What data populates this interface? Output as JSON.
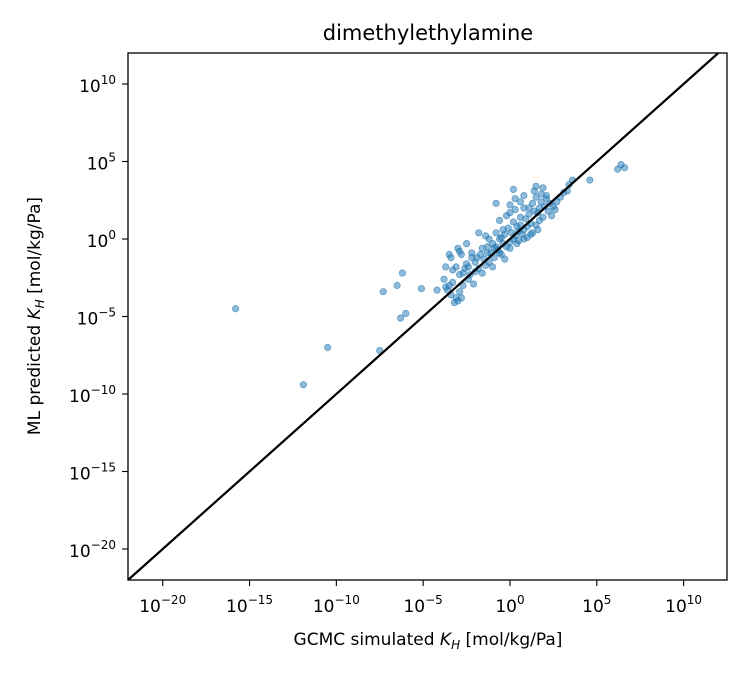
{
  "chart_data": {
    "type": "scatter",
    "title": "dimethylethylamine",
    "xlabel": {
      "prefix": "GCMC simulated ",
      "symbol": "K",
      "sub": "H",
      "suffix": " [mol/kg/Pa]"
    },
    "ylabel": {
      "prefix": "ML predicted ",
      "symbol": "K",
      "sub": "H",
      "suffix": " [mol/kg/Pa]"
    },
    "scale": "log10",
    "xlim_exp": [
      -22,
      12.5
    ],
    "ylim_exp": [
      -22,
      12
    ],
    "xticks": [
      {
        "base": "10",
        "exp": "−20"
      },
      {
        "base": "10",
        "exp": "−15"
      },
      {
        "base": "10",
        "exp": "−10"
      },
      {
        "base": "10",
        "exp": "−5"
      },
      {
        "base": "10",
        "exp": "0"
      },
      {
        "base": "10",
        "exp": "5"
      },
      {
        "base": "10",
        "exp": "10"
      }
    ],
    "yticks": [
      {
        "base": "10",
        "exp": "−20"
      },
      {
        "base": "10",
        "exp": "−15"
      },
      {
        "base": "10",
        "exp": "−10"
      },
      {
        "base": "10",
        "exp": "−5"
      },
      {
        "base": "10",
        "exp": "0"
      },
      {
        "base": "10",
        "exp": "5"
      },
      {
        "base": "10",
        "exp": "10"
      }
    ],
    "identity_line": true,
    "grid": false,
    "point_color": "#1f77b4",
    "line_color": "#000000",
    "points_log10": [
      [
        -15.8,
        -4.5
      ],
      [
        -11.9,
        -9.4
      ],
      [
        -10.5,
        -7.0
      ],
      [
        -7.5,
        -7.2
      ],
      [
        -7.3,
        -3.4
      ],
      [
        -6.5,
        -3.0
      ],
      [
        -6.2,
        -2.2
      ],
      [
        -6.3,
        -5.1
      ],
      [
        -6.0,
        -4.8
      ],
      [
        -5.1,
        -3.2
      ],
      [
        -4.2,
        -3.3
      ],
      [
        -3.8,
        -2.6
      ],
      [
        -3.7,
        -1.8
      ],
      [
        -3.5,
        -1.0
      ],
      [
        -3.3,
        -2.0
      ],
      [
        -3.1,
        -1.8
      ],
      [
        -2.9,
        -2.3
      ],
      [
        -2.5,
        -1.6
      ],
      [
        -2.2,
        -1.2
      ],
      [
        -3.6,
        -3.3
      ],
      [
        -3.4,
        -3.6
      ],
      [
        -3.1,
        -3.8
      ],
      [
        -3.0,
        -4.0
      ],
      [
        -3.2,
        -4.1
      ],
      [
        -2.8,
        -3.8
      ],
      [
        -2.9,
        -3.4
      ],
      [
        -2.7,
        -3.0
      ],
      [
        -2.4,
        -2.6
      ],
      [
        -3.5,
        -3.0
      ],
      [
        -2.6,
        -1.9
      ],
      [
        -2.3,
        -2.3
      ],
      [
        -2.0,
        -2.1
      ],
      [
        -1.8,
        -1.9
      ],
      [
        -2.1,
        -2.9
      ],
      [
        -1.6,
        -2.2
      ],
      [
        -1.4,
        -1.7
      ],
      [
        -1.7,
        -1.0
      ],
      [
        -1.5,
        -1.3
      ],
      [
        -2.2,
        -0.9
      ],
      [
        -1.9,
        -1.2
      ],
      [
        -1.2,
        -1.5
      ],
      [
        -1.1,
        -0.9
      ],
      [
        -0.9,
        -1.2
      ],
      [
        -0.7,
        -0.7
      ],
      [
        -1.3,
        -0.5
      ],
      [
        -1.0,
        -0.3
      ],
      [
        -0.8,
        -0.5
      ],
      [
        -0.6,
        -0.9
      ],
      [
        -0.4,
        -0.3
      ],
      [
        -0.2,
        -0.5
      ],
      [
        0.0,
        -0.2
      ],
      [
        0.2,
        0.0
      ],
      [
        -0.5,
        0.1
      ],
      [
        -0.3,
        0.3
      ],
      [
        0.1,
        0.4
      ],
      [
        0.3,
        0.2
      ],
      [
        0.5,
        0.5
      ],
      [
        0.7,
        0.3
      ],
      [
        0.4,
        0.8
      ],
      [
        0.6,
        0.9
      ],
      [
        0.8,
        0.6
      ],
      [
        1.0,
        0.8
      ],
      [
        1.2,
        1.0
      ],
      [
        0.9,
        1.3
      ],
      [
        1.3,
        0.4
      ],
      [
        1.5,
        0.9
      ],
      [
        1.7,
        1.2
      ],
      [
        1.1,
        1.6
      ],
      [
        1.4,
        1.8
      ],
      [
        -0.6,
        0.0
      ],
      [
        -0.9,
        -0.6
      ],
      [
        -1.3,
        -0.9
      ],
      [
        -1.6,
        -0.6
      ],
      [
        -2.0,
        -1.5
      ],
      [
        -2.4,
        -1.8
      ],
      [
        -2.7,
        -2.2
      ],
      [
        -3.3,
        -2.8
      ],
      [
        -3.7,
        -3.1
      ],
      [
        -1.0,
        -1.8
      ],
      [
        -0.5,
        -1.0
      ],
      [
        0.0,
        -0.6
      ],
      [
        0.4,
        -0.3
      ],
      [
        0.8,
        0.0
      ],
      [
        1.2,
        0.3
      ],
      [
        -0.1,
        0.7
      ],
      [
        -0.4,
        0.6
      ],
      [
        -0.8,
        0.4
      ],
      [
        0.2,
        1.1
      ],
      [
        0.6,
        1.4
      ],
      [
        -1.2,
        0.0
      ],
      [
        -0.3,
        -1.3
      ],
      [
        0.5,
        -0.1
      ],
      [
        1.0,
        0.1
      ],
      [
        1.6,
        0.6
      ],
      [
        0.0,
        1.7
      ],
      [
        -0.6,
        1.2
      ],
      [
        -1.4,
        0.2
      ],
      [
        0.3,
        1.9
      ],
      [
        0.8,
        2.0
      ],
      [
        0.2,
        3.2
      ],
      [
        -0.8,
        2.3
      ],
      [
        0.3,
        2.6
      ],
      [
        0.6,
        2.4
      ],
      [
        1.1,
        2.0
      ],
      [
        1.3,
        2.3
      ],
      [
        1.8,
        2.4
      ],
      [
        2.0,
        2.1
      ],
      [
        2.2,
        1.8
      ],
      [
        2.1,
        2.6
      ],
      [
        1.7,
        2.0
      ],
      [
        2.3,
        2.3
      ],
      [
        1.5,
        2.7
      ],
      [
        2.4,
        1.5
      ],
      [
        2.6,
        1.9
      ],
      [
        1.9,
        1.4
      ],
      [
        1.6,
        1.7
      ],
      [
        2.5,
        2.1
      ],
      [
        0.0,
        2.2
      ],
      [
        1.4,
        3.1
      ],
      [
        1.5,
        3.4
      ],
      [
        1.9,
        3.3
      ],
      [
        2.1,
        2.8
      ],
      [
        3.1,
        3.0
      ],
      [
        3.4,
        3.5
      ],
      [
        3.6,
        3.8
      ],
      [
        2.9,
        2.7
      ],
      [
        3.3,
        3.1
      ],
      [
        4.6,
        3.8
      ],
      [
        6.2,
        4.5
      ],
      [
        6.4,
        4.8
      ],
      [
        6.6,
        4.6
      ],
      [
        0.8,
        2.8
      ],
      [
        1.8,
        2.9
      ],
      [
        2.7,
        2.4
      ],
      [
        -0.2,
        1.5
      ],
      [
        -1.8,
        0.4
      ],
      [
        -2.5,
        -0.3
      ],
      [
        -3.0,
        -0.6
      ],
      [
        -3.4,
        -1.2
      ],
      [
        -2.8,
        -1.0
      ],
      [
        -2.9,
        -0.8
      ]
    ]
  }
}
